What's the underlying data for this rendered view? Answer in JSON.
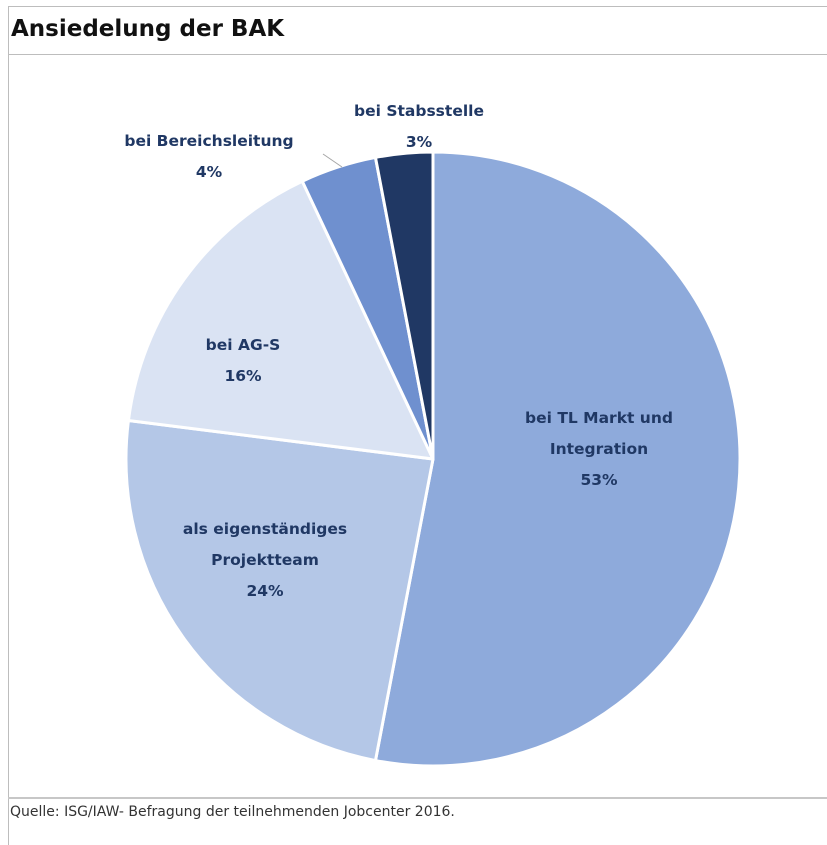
{
  "title": "Ansiedelung der BAK",
  "source": "Quelle: ISG/IAW- Befragung der teilnehmenden Jobcenter 2016.",
  "chart_data": {
    "type": "pie",
    "title": "Ansiedelung der BAK",
    "start": "12 o'clock",
    "direction": "clockwise",
    "slices": [
      {
        "label": "bei TL Markt und Integration",
        "value": 53,
        "value_label": "53%",
        "color": "#8eaadb"
      },
      {
        "label": "als eigenständiges Projektteam",
        "value": 24,
        "value_label": "24%",
        "color": "#b4c7e7"
      },
      {
        "label": "bei AG-S",
        "value": 16,
        "value_label": "16%",
        "color": "#dae3f3"
      },
      {
        "label": "bei Bereichsleitung",
        "value": 4,
        "value_label": "4%",
        "color": "#6f90cf"
      },
      {
        "label": "bei Stabsstelle",
        "value": 3,
        "value_label": "3%",
        "color": "#203864"
      }
    ]
  }
}
